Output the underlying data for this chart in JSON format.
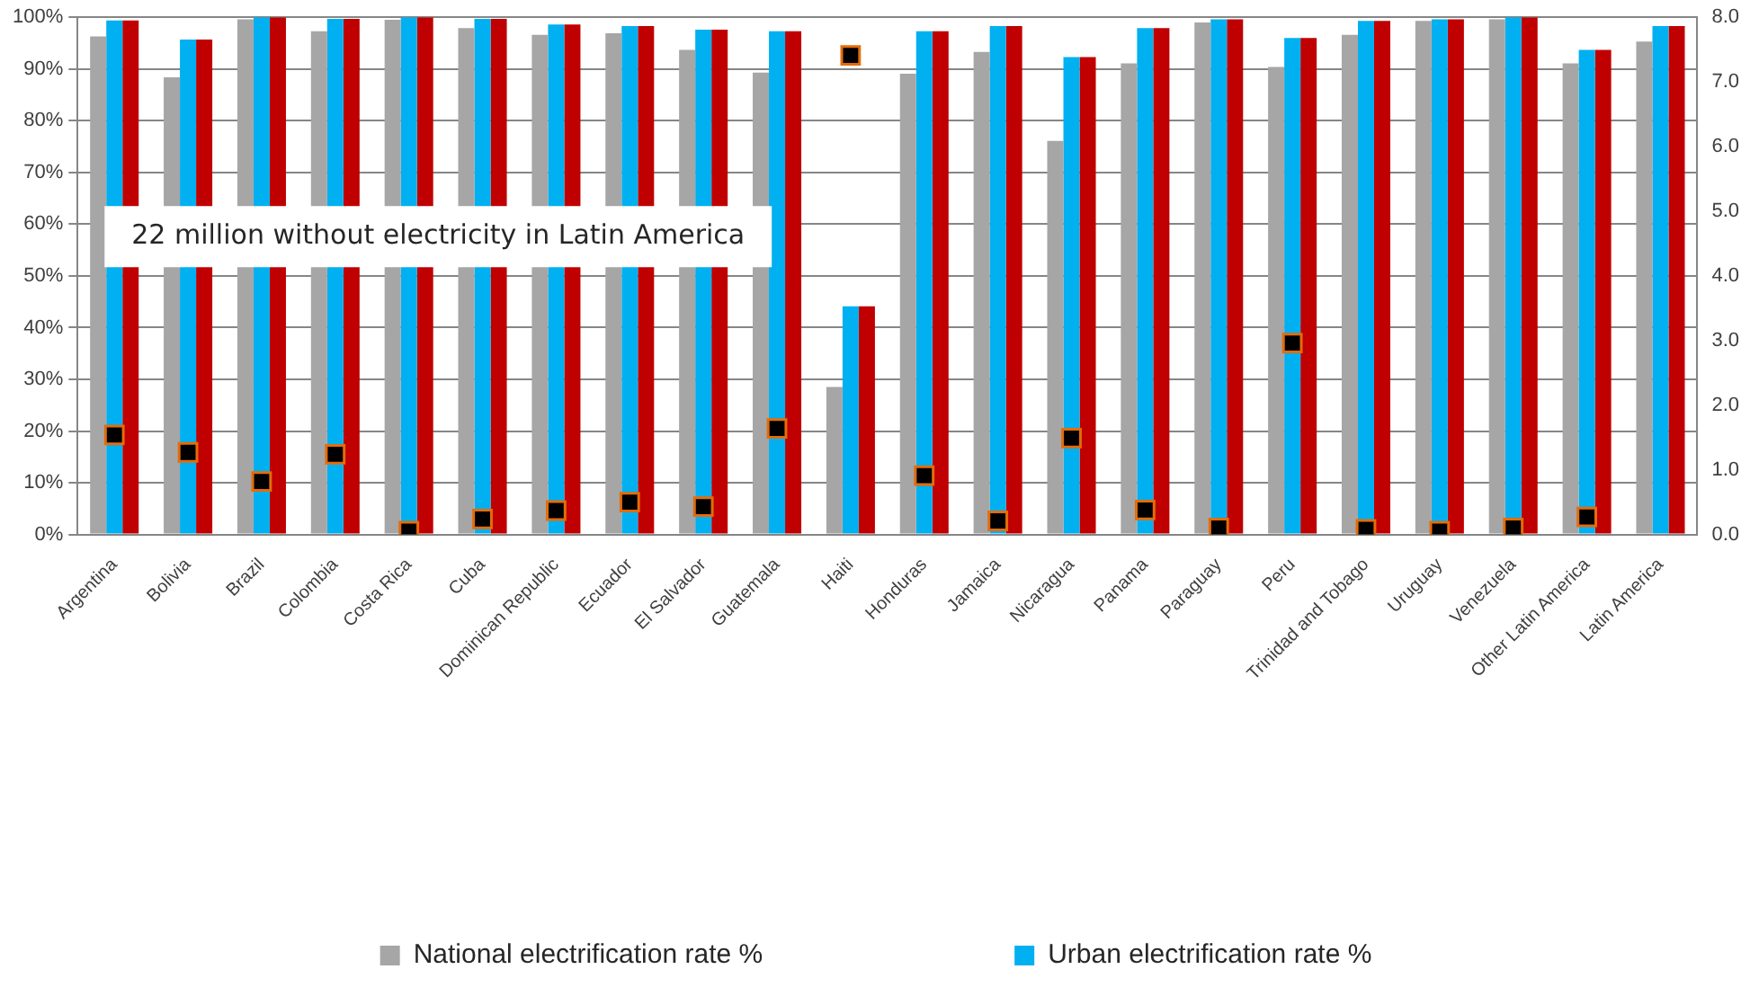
{
  "chart_data": {
    "type": "bar",
    "categories": [
      "Argentina",
      "Bolivia",
      "Brazil",
      "Colombia",
      "Costa Rica",
      "Cuba",
      "Dominican Republic",
      "Ecuador",
      "El Salvador",
      "Guatemala",
      "Haiti",
      "Honduras",
      "Jamaica",
      "Nicaragua",
      "Panama",
      "Paraguay",
      "Peru",
      "Trinidad and Tobago",
      "Uruguay",
      "Venezuela",
      "Other Latin America",
      "Latin America"
    ],
    "series": [
      {
        "name": "National electrification rate %",
        "color": "#a6a6a6",
        "values": [
          96.3,
          88.4,
          99.6,
          97.3,
          99.5,
          97.9,
          96.6,
          96.9,
          93.7,
          89.3,
          28.5,
          89.1,
          93.3,
          76.1,
          91.1,
          99.0,
          90.4,
          96.6,
          99.3,
          99.6,
          91.1,
          95.3
        ]
      },
      {
        "name": "Urban electrification rate %",
        "color": "#00b0f0",
        "values": [
          99.4,
          95.7,
          100,
          99.7,
          100,
          99.7,
          98.6,
          98.3,
          97.6,
          97.3,
          44.1,
          97.3,
          98.3,
          92.3,
          97.9,
          99.6,
          96.0,
          99.3,
          99.6,
          100,
          93.7,
          98.3
        ]
      },
      {
        "color": "#c00000",
        "values": [
          99.4,
          95.7,
          100,
          99.7,
          100,
          99.7,
          98.6,
          98.3,
          97.6,
          97.3,
          44.1,
          97.3,
          98.3,
          92.3,
          97.9,
          99.6,
          96.0,
          99.3,
          99.6,
          100,
          93.7,
          98.3
        ]
      },
      {
        "type": "scatter",
        "axis": "y2",
        "marker": "square",
        "color": "#000000",
        "values": [
          1.54,
          1.27,
          0.82,
          1.24,
          0.05,
          0.24,
          0.37,
          0.5,
          0.43,
          1.64,
          7.41,
          0.91,
          0.21,
          1.49,
          0.38,
          0.1,
          2.96,
          0.08,
          0.05,
          0.1,
          0.27,
          null
        ]
      }
    ],
    "ylim": [
      0,
      100
    ],
    "yticks": [
      {
        "value": 0,
        "label": "0%"
      },
      {
        "value": 10,
        "label": "10%"
      },
      {
        "value": 20,
        "label": "20%"
      },
      {
        "value": 30,
        "label": "30%"
      },
      {
        "value": 40,
        "label": "40%"
      },
      {
        "value": 50,
        "label": "50%"
      },
      {
        "value": 60,
        "label": "60%"
      },
      {
        "value": 70,
        "label": "70%"
      },
      {
        "value": 80,
        "label": "80%"
      },
      {
        "value": 90,
        "label": "90%"
      },
      {
        "value": 100,
        "label": "100%"
      }
    ],
    "y2lim": [
      0,
      8
    ],
    "y2ticks": [
      {
        "value": 0,
        "label": "0.0"
      },
      {
        "value": 1,
        "label": "1.0"
      },
      {
        "value": 2,
        "label": "2.0"
      },
      {
        "value": 3,
        "label": "3.0"
      },
      {
        "value": 4,
        "label": "4.0"
      },
      {
        "value": 5,
        "label": "5.0"
      },
      {
        "value": 6,
        "label": "6.0"
      },
      {
        "value": 7,
        "label": "7.0"
      },
      {
        "value": 8,
        "label": "8.0"
      }
    ],
    "grid": "y",
    "legend": "bottom",
    "annotations": [
      "22 million without electricity in Latin America"
    ]
  }
}
